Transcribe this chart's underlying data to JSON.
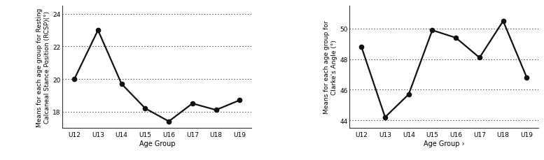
{
  "age_groups": [
    "U12",
    "U13",
    "U14",
    "U15",
    "U16",
    "U17",
    "U18",
    "U19"
  ],
  "rcsp_values": [
    20.0,
    23.0,
    19.7,
    18.2,
    17.4,
    18.5,
    18.1,
    18.7
  ],
  "rcsp_ylabel": "Means for each age group for Resting\nCalcaneal Stance Position (RCSP)(°)",
  "rcsp_xlabel": "Age Group",
  "rcsp_ylim": [
    17.0,
    24.5
  ],
  "rcsp_yticks": [
    18,
    20,
    22,
    24
  ],
  "clarke_values": [
    48.8,
    44.2,
    45.7,
    49.9,
    49.4,
    48.1,
    50.5,
    46.8
  ],
  "clarke_ylabel": "Means for each age group for\nClarke's Angle (°)",
  "clarke_xlabel": "Age Group ›",
  "clarke_ylim": [
    43.5,
    51.5
  ],
  "clarke_yticks": [
    44,
    46,
    48,
    50
  ],
  "line_color": "#111111",
  "marker_color": "#111111",
  "grid_color": "#444444",
  "bg_color": "#ffffff"
}
